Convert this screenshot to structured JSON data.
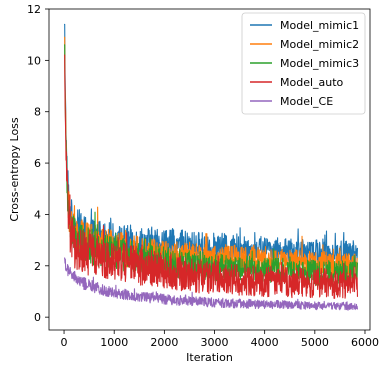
{
  "chart_data": {
    "type": "line",
    "title": "",
    "xlabel": "Iteration",
    "ylabel": "Cross-entropy Loss",
    "xlim": [
      -300,
      6100
    ],
    "ylim": [
      -0.5,
      12
    ],
    "x_ticks": [
      0,
      1000,
      2000,
      3000,
      4000,
      5000,
      6000
    ],
    "y_ticks": [
      0,
      2,
      4,
      6,
      8,
      10,
      12
    ],
    "grid": false,
    "legend_position": "top-right",
    "x_max_iteration": 5850,
    "series": [
      {
        "name": "Model_mimic1",
        "color": "#1f77b4",
        "x": [
          0,
          20,
          50,
          100,
          150,
          200,
          300,
          400,
          600,
          800,
          1000,
          1500,
          2000,
          2500,
          3000,
          3500,
          4000,
          4500,
          5000,
          5500,
          5850
        ],
        "y": [
          11.4,
          9.5,
          6.0,
          4.3,
          3.7,
          3.5,
          3.3,
          3.2,
          3.1,
          3.0,
          2.95,
          2.85,
          2.8,
          2.75,
          2.7,
          2.65,
          2.6,
          2.55,
          2.5,
          2.5,
          2.5
        ],
        "band": [
          0,
          0,
          0.8,
          0.9,
          0.9,
          0.9,
          0.8,
          0.8,
          0.75,
          0.75,
          0.7,
          0.7,
          0.7,
          0.6,
          0.6,
          0.55,
          0.55,
          0.5,
          0.5,
          0.5,
          0.5
        ]
      },
      {
        "name": "Model_mimic2",
        "color": "#ff7f0e",
        "x": [
          0,
          20,
          50,
          100,
          150,
          200,
          300,
          400,
          600,
          800,
          1000,
          1500,
          2000,
          2500,
          3000,
          3500,
          4000,
          4500,
          5000,
          5500,
          5850
        ],
        "y": [
          10.9,
          9.0,
          5.7,
          4.0,
          3.5,
          3.3,
          3.1,
          3.0,
          2.9,
          2.8,
          2.7,
          2.55,
          2.4,
          2.35,
          2.3,
          2.25,
          2.2,
          2.15,
          2.1,
          2.05,
          2.0
        ],
        "band": [
          0,
          0,
          0.8,
          0.8,
          0.8,
          0.8,
          0.75,
          0.75,
          0.7,
          0.7,
          0.7,
          0.65,
          0.6,
          0.6,
          0.55,
          0.55,
          0.5,
          0.5,
          0.5,
          0.5,
          0.5
        ]
      },
      {
        "name": "Model_mimic3",
        "color": "#2ca02c",
        "x": [
          0,
          20,
          50,
          100,
          150,
          200,
          300,
          400,
          600,
          800,
          1000,
          1500,
          2000,
          2500,
          3000,
          3500,
          4000,
          4500,
          5000,
          5500,
          5850
        ],
        "y": [
          10.6,
          8.8,
          5.5,
          3.8,
          3.3,
          3.1,
          2.9,
          2.8,
          2.7,
          2.6,
          2.5,
          2.3,
          2.15,
          2.05,
          1.95,
          1.9,
          1.85,
          1.8,
          1.75,
          1.7,
          1.7
        ],
        "band": [
          0,
          0,
          0.8,
          0.8,
          0.8,
          0.8,
          0.75,
          0.75,
          0.7,
          0.7,
          0.65,
          0.6,
          0.6,
          0.55,
          0.55,
          0.5,
          0.5,
          0.5,
          0.5,
          0.5,
          0.5
        ]
      },
      {
        "name": "Model_auto",
        "color": "#d62728",
        "x": [
          0,
          20,
          50,
          100,
          150,
          200,
          300,
          400,
          600,
          800,
          1000,
          1500,
          2000,
          2500,
          3000,
          3500,
          4000,
          4500,
          5000,
          5500,
          5850
        ],
        "y": [
          10.2,
          8.5,
          5.2,
          3.5,
          3.0,
          2.8,
          2.6,
          2.5,
          2.4,
          2.3,
          2.2,
          2.0,
          1.8,
          1.65,
          1.55,
          1.45,
          1.4,
          1.35,
          1.3,
          1.25,
          1.2
        ],
        "band": [
          0,
          0,
          0.9,
          0.9,
          0.9,
          0.9,
          0.85,
          0.85,
          0.8,
          0.8,
          0.75,
          0.75,
          0.7,
          0.7,
          0.65,
          0.6,
          0.6,
          0.6,
          0.55,
          0.55,
          0.55
        ]
      },
      {
        "name": "Model_CE",
        "color": "#9467bd",
        "x": [
          0,
          20,
          50,
          100,
          150,
          200,
          300,
          400,
          600,
          800,
          1000,
          1500,
          2000,
          2500,
          3000,
          3500,
          4000,
          4500,
          5000,
          5500,
          5850
        ],
        "y": [
          2.3,
          2.1,
          1.9,
          1.75,
          1.65,
          1.55,
          1.4,
          1.3,
          1.15,
          1.05,
          0.95,
          0.8,
          0.7,
          0.62,
          0.57,
          0.53,
          0.5,
          0.48,
          0.45,
          0.43,
          0.42
        ],
        "band": [
          0,
          0.2,
          0.2,
          0.25,
          0.25,
          0.25,
          0.25,
          0.25,
          0.25,
          0.22,
          0.22,
          0.2,
          0.2,
          0.2,
          0.18,
          0.18,
          0.17,
          0.17,
          0.16,
          0.16,
          0.16
        ]
      }
    ]
  }
}
